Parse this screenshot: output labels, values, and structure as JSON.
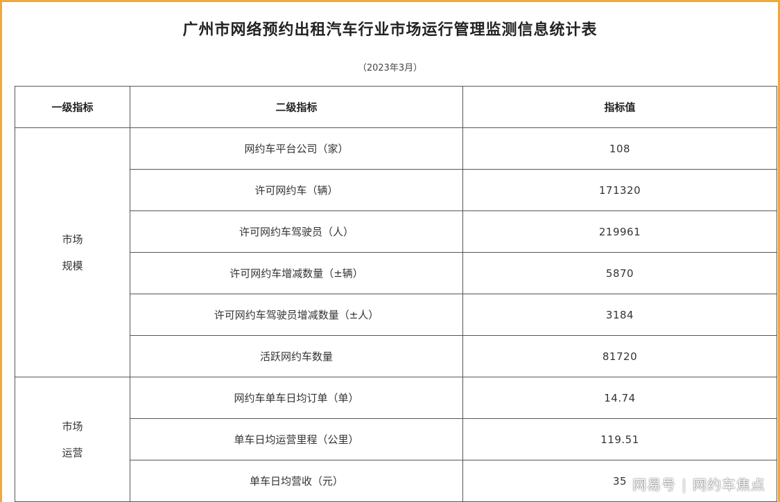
{
  "title": "广州市网络预约出租汽车行业市场运行管理监测信息统计表",
  "subtitle": "（2023年3月）",
  "table": {
    "headers": [
      "一级指标",
      "二级指标",
      "指标值"
    ],
    "groups": [
      {
        "category_line1": "市场",
        "category_line2": "规模",
        "rows": [
          {
            "indicator": "网约车平台公司（家）",
            "value": "108"
          },
          {
            "indicator": "许可网约车（辆）",
            "value": "171320"
          },
          {
            "indicator": "许可网约车驾驶员（人）",
            "value": "219961"
          },
          {
            "indicator": "许可网约车增减数量（±辆）",
            "value": "5870"
          },
          {
            "indicator": "许可网约车驾驶员增减数量（±人）",
            "value": "3184"
          },
          {
            "indicator": "活跃网约车数量",
            "value": "81720"
          }
        ]
      },
      {
        "category_line1": "市场",
        "category_line2": "运营",
        "rows": [
          {
            "indicator": "网约车单车日均订单（单）",
            "value": "14.74"
          },
          {
            "indicator": "单车日均运营里程（公里）",
            "value": "119.51"
          },
          {
            "indicator": "单车日均营收（元）",
            "value": "35"
          }
        ]
      }
    ]
  },
  "watermark": {
    "source": "网易号",
    "separator": "|",
    "account": "网约车焦点"
  },
  "colors": {
    "frame_border": "#f0a83a",
    "table_border": "#555555"
  }
}
